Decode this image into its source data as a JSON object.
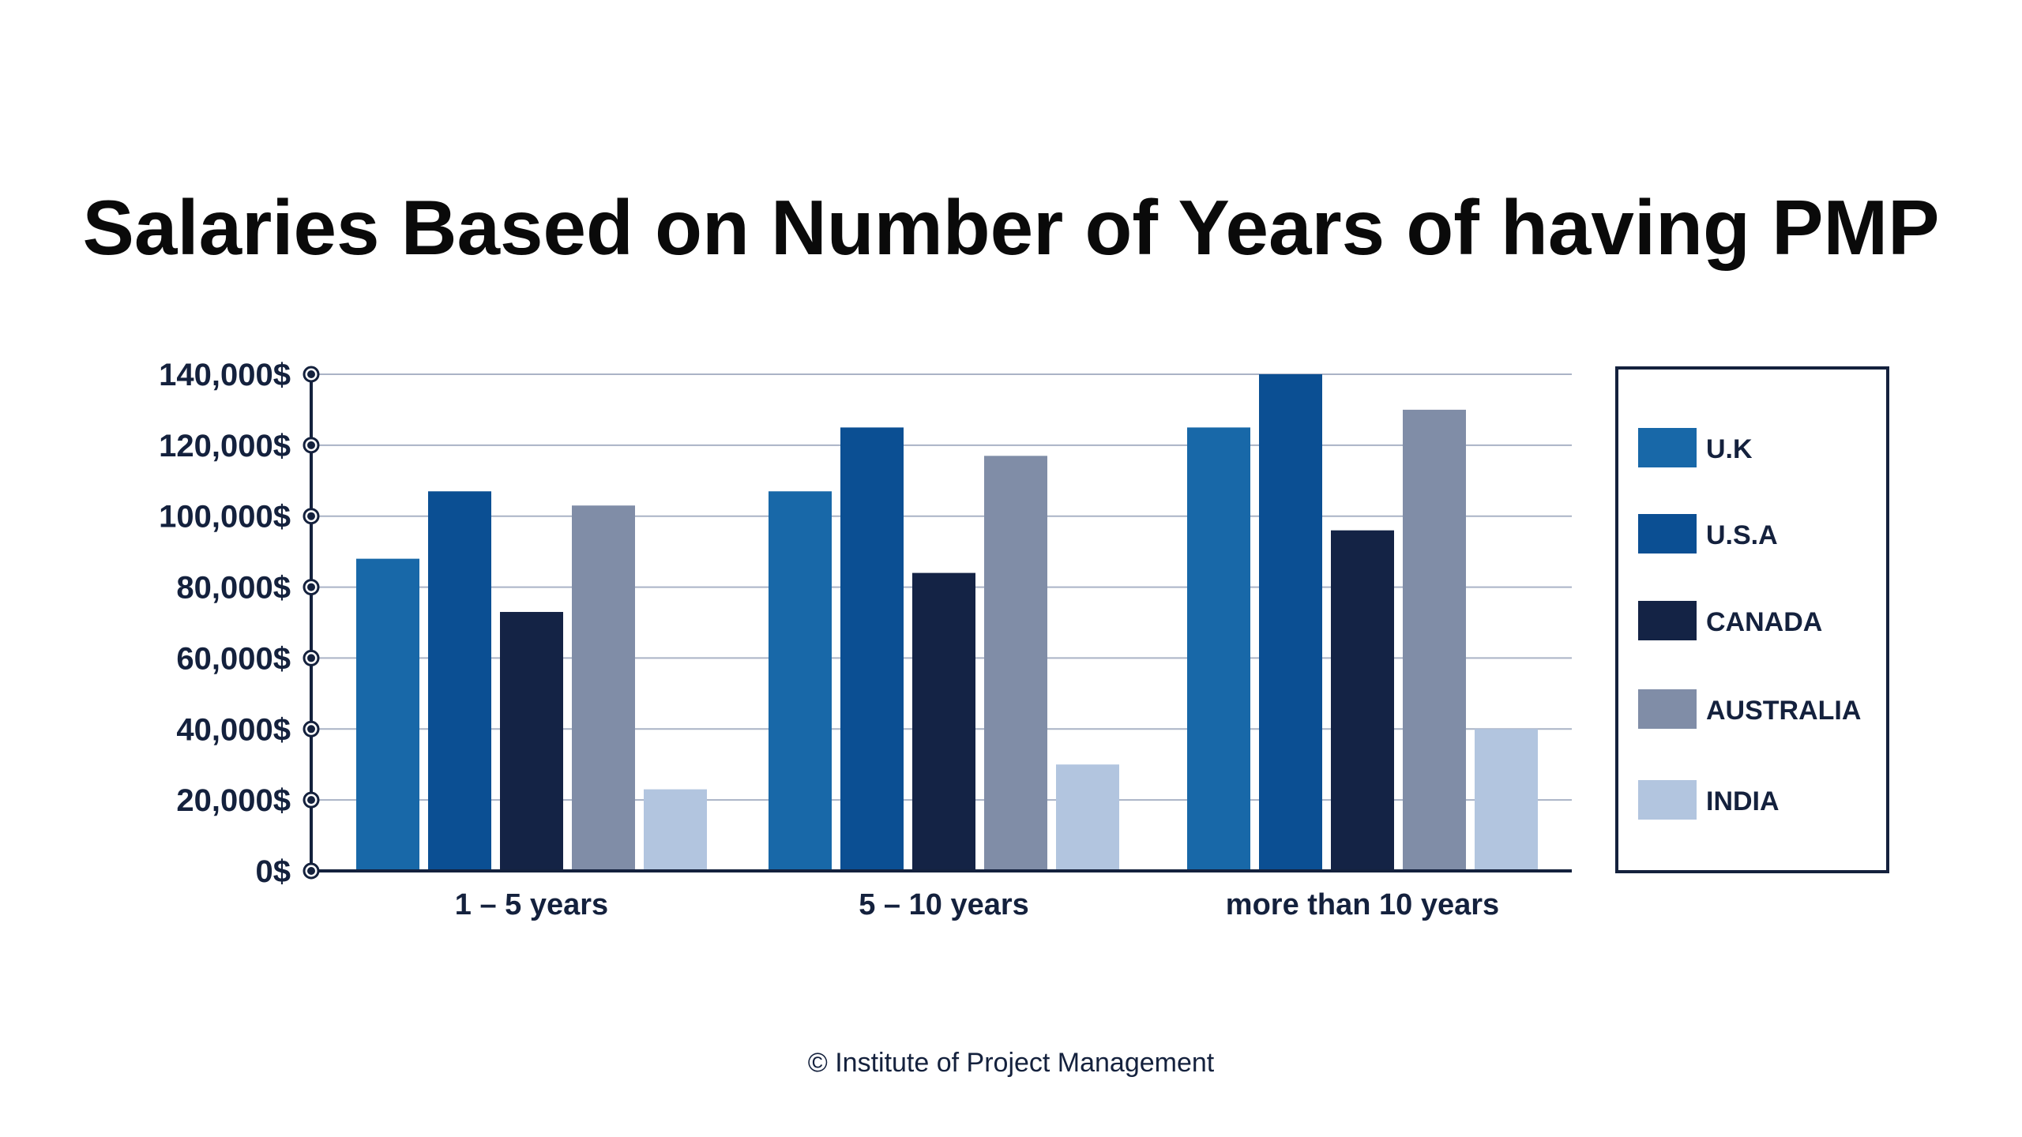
{
  "chart_data": {
    "type": "bar",
    "title": "Salaries Based on Number of Years of having PMP",
    "categories": [
      "1 – 5 years",
      "5 – 10 years",
      "more than 10 years"
    ],
    "series": [
      {
        "name": "U.K",
        "color": "#1868a8",
        "values": [
          88000,
          107000,
          125000
        ]
      },
      {
        "name": "U.S.A",
        "color": "#0b4f93",
        "values": [
          107000,
          125000,
          140000
        ]
      },
      {
        "name": "CANADA",
        "color": "#142345",
        "values": [
          73000,
          84000,
          96000
        ]
      },
      {
        "name": "AUSTRALIA",
        "color": "#808da7",
        "values": [
          103000,
          117000,
          130000
        ]
      },
      {
        "name": "INDIA",
        "color": "#b2c5df",
        "values": [
          23000,
          30000,
          40000
        ]
      }
    ],
    "ylim": [
      0,
      140000
    ],
    "yticks": [
      0,
      20000,
      40000,
      60000,
      80000,
      100000,
      120000,
      140000
    ],
    "ytick_labels": [
      "0$",
      "20,000$",
      "40,000$",
      "60,000$",
      "80,000$",
      "100,000$",
      "120,000$",
      "140,000$"
    ],
    "grid": true,
    "legend_position": "right"
  },
  "footer": {
    "credit": "© Institute of Project Management"
  }
}
